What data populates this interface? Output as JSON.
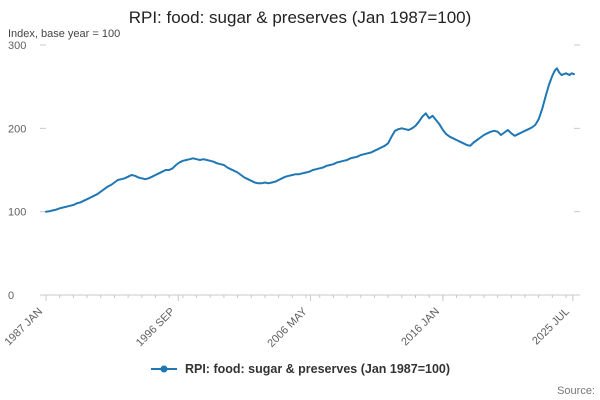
{
  "chart_data": {
    "type": "line",
    "title": "RPI: food: sugar & preserves (Jan 1987=100)",
    "ylabel": "Index, base year = 100",
    "xlim": [
      1987.0,
      2025.583
    ],
    "ylim": [
      0,
      300
    ],
    "yticks": [
      0,
      100,
      200,
      300
    ],
    "xticks": [
      {
        "label": "1987 JAN",
        "pos": 1987.0
      },
      {
        "label": "1996 SEP",
        "pos": 1996.667
      },
      {
        "label": "2006 MAY",
        "pos": 2006.333
      },
      {
        "label": "2016 JAN",
        "pos": 2016.0
      },
      {
        "label": "2025 JUL",
        "pos": 2025.5
      }
    ],
    "grid": false,
    "legend_position": "bottom",
    "legend_label": "RPI: food: sugar & preserves (Jan 1987=100)",
    "source_label": "Source:",
    "colors": {
      "accent": "#1f77b4",
      "axis": "#c8c8c8",
      "text": "#333333",
      "text_muted": "#606060"
    },
    "series": [
      {
        "name": "RPI: food: sugar & preserves (Jan 1987=100)",
        "x_unit": "decimal_year",
        "points": [
          [
            1987.0,
            100
          ],
          [
            1987.25,
            100.5
          ],
          [
            1987.5,
            101.5
          ],
          [
            1987.75,
            102.5
          ],
          [
            1988.0,
            104
          ],
          [
            1988.25,
            105
          ],
          [
            1988.5,
            106
          ],
          [
            1988.75,
            107
          ],
          [
            1989.0,
            108
          ],
          [
            1989.25,
            110
          ],
          [
            1989.5,
            111
          ],
          [
            1989.75,
            113
          ],
          [
            1990.0,
            115
          ],
          [
            1990.25,
            117
          ],
          [
            1990.5,
            119
          ],
          [
            1990.75,
            121
          ],
          [
            1991.0,
            124
          ],
          [
            1991.25,
            127
          ],
          [
            1991.5,
            130
          ],
          [
            1991.75,
            132
          ],
          [
            1992.0,
            135
          ],
          [
            1992.25,
            138
          ],
          [
            1992.5,
            139
          ],
          [
            1992.75,
            140
          ],
          [
            1993.0,
            142
          ],
          [
            1993.25,
            144
          ],
          [
            1993.5,
            143
          ],
          [
            1993.75,
            141
          ],
          [
            1994.0,
            140
          ],
          [
            1994.25,
            139
          ],
          [
            1994.5,
            140
          ],
          [
            1994.75,
            142
          ],
          [
            1995.0,
            144
          ],
          [
            1995.25,
            146
          ],
          [
            1995.5,
            148
          ],
          [
            1995.75,
            150
          ],
          [
            1996.0,
            150
          ],
          [
            1996.25,
            152
          ],
          [
            1996.5,
            156
          ],
          [
            1996.75,
            159
          ],
          [
            1997.0,
            161
          ],
          [
            1997.25,
            162
          ],
          [
            1997.5,
            163
          ],
          [
            1997.75,
            164
          ],
          [
            1998.0,
            163
          ],
          [
            1998.25,
            162
          ],
          [
            1998.5,
            163
          ],
          [
            1998.75,
            162
          ],
          [
            1999.0,
            161
          ],
          [
            1999.25,
            160
          ],
          [
            1999.5,
            158
          ],
          [
            1999.75,
            157
          ],
          [
            2000.0,
            156
          ],
          [
            2000.25,
            153
          ],
          [
            2000.5,
            151
          ],
          [
            2000.75,
            149
          ],
          [
            2001.0,
            147
          ],
          [
            2001.25,
            144
          ],
          [
            2001.5,
            141
          ],
          [
            2001.75,
            139
          ],
          [
            2002.0,
            137
          ],
          [
            2002.25,
            135
          ],
          [
            2002.5,
            134
          ],
          [
            2002.75,
            134
          ],
          [
            2003.0,
            135
          ],
          [
            2003.25,
            134
          ],
          [
            2003.5,
            135
          ],
          [
            2003.75,
            136
          ],
          [
            2004.0,
            138
          ],
          [
            2004.25,
            140
          ],
          [
            2004.5,
            142
          ],
          [
            2004.75,
            143
          ],
          [
            2005.0,
            144
          ],
          [
            2005.25,
            145
          ],
          [
            2005.5,
            145
          ],
          [
            2005.75,
            146
          ],
          [
            2006.0,
            147
          ],
          [
            2006.25,
            148
          ],
          [
            2006.5,
            150
          ],
          [
            2006.75,
            151
          ],
          [
            2007.0,
            152
          ],
          [
            2007.25,
            153
          ],
          [
            2007.5,
            155
          ],
          [
            2007.75,
            156
          ],
          [
            2008.0,
            157
          ],
          [
            2008.25,
            159
          ],
          [
            2008.5,
            160
          ],
          [
            2008.75,
            161
          ],
          [
            2009.0,
            162
          ],
          [
            2009.25,
            164
          ],
          [
            2009.5,
            165
          ],
          [
            2009.75,
            166
          ],
          [
            2010.0,
            168
          ],
          [
            2010.25,
            169
          ],
          [
            2010.5,
            170
          ],
          [
            2010.75,
            171
          ],
          [
            2011.0,
            173
          ],
          [
            2011.25,
            175
          ],
          [
            2011.5,
            177
          ],
          [
            2011.75,
            179
          ],
          [
            2012.0,
            182
          ],
          [
            2012.25,
            190
          ],
          [
            2012.5,
            197
          ],
          [
            2012.75,
            199
          ],
          [
            2013.0,
            200
          ],
          [
            2013.25,
            199
          ],
          [
            2013.5,
            198
          ],
          [
            2013.75,
            200
          ],
          [
            2014.0,
            203
          ],
          [
            2014.25,
            208
          ],
          [
            2014.5,
            214
          ],
          [
            2014.75,
            218
          ],
          [
            2015.0,
            212
          ],
          [
            2015.25,
            215
          ],
          [
            2015.5,
            210
          ],
          [
            2015.75,
            205
          ],
          [
            2016.0,
            198
          ],
          [
            2016.25,
            193
          ],
          [
            2016.5,
            190
          ],
          [
            2016.75,
            188
          ],
          [
            2017.0,
            186
          ],
          [
            2017.25,
            184
          ],
          [
            2017.5,
            182
          ],
          [
            2017.75,
            180
          ],
          [
            2018.0,
            179
          ],
          [
            2018.25,
            183
          ],
          [
            2018.5,
            186
          ],
          [
            2018.75,
            189
          ],
          [
            2019.0,
            192
          ],
          [
            2019.25,
            194
          ],
          [
            2019.5,
            196
          ],
          [
            2019.75,
            197
          ],
          [
            2020.0,
            196
          ],
          [
            2020.25,
            192
          ],
          [
            2020.5,
            195
          ],
          [
            2020.75,
            198
          ],
          [
            2021.0,
            194
          ],
          [
            2021.25,
            191
          ],
          [
            2021.5,
            193
          ],
          [
            2021.75,
            195
          ],
          [
            2022.0,
            197
          ],
          [
            2022.25,
            199
          ],
          [
            2022.5,
            201
          ],
          [
            2022.75,
            204
          ],
          [
            2023.0,
            211
          ],
          [
            2023.25,
            223
          ],
          [
            2023.5,
            238
          ],
          [
            2023.75,
            252
          ],
          [
            2024.0,
            263
          ],
          [
            2024.17,
            269
          ],
          [
            2024.33,
            272
          ],
          [
            2024.5,
            267
          ],
          [
            2024.67,
            264
          ],
          [
            2024.83,
            265
          ],
          [
            2025.0,
            266
          ],
          [
            2025.25,
            264
          ],
          [
            2025.42,
            266
          ],
          [
            2025.58,
            265
          ]
        ]
      }
    ]
  }
}
